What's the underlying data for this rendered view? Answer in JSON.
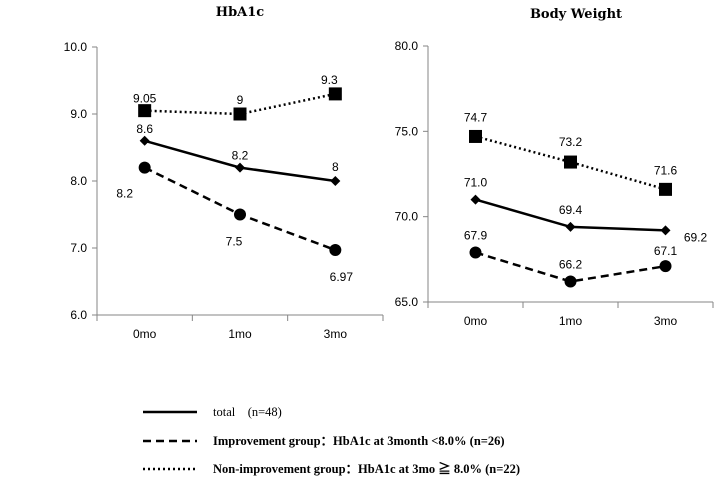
{
  "chart_data": [
    {
      "type": "line",
      "title": "HbA1c",
      "categories": [
        "0mo",
        "1mo",
        "3mo"
      ],
      "ylim": [
        6.0,
        10.0
      ],
      "yticks": [
        "6.0",
        "7.0",
        "8.0",
        "9.0",
        "10.0"
      ],
      "series": [
        {
          "key": "total",
          "values": [
            8.6,
            8.2,
            8.0
          ],
          "labels": [
            "8.6",
            "8.2",
            "8"
          ]
        },
        {
          "key": "improvement",
          "values": [
            8.2,
            7.5,
            6.97
          ],
          "labels": [
            "8.2",
            "7.5",
            "6.97"
          ]
        },
        {
          "key": "nonimprovement",
          "values": [
            9.05,
            9.0,
            9.3
          ],
          "labels": [
            "9.05",
            "9",
            "9.3"
          ]
        }
      ]
    },
    {
      "type": "line",
      "title": "Body Weight",
      "categories": [
        "0mo",
        "1mo",
        "3mo"
      ],
      "ylim": [
        65.0,
        80.0
      ],
      "yticks": [
        "65.0",
        "70.0",
        "75.0",
        "80.0"
      ],
      "series": [
        {
          "key": "total",
          "values": [
            71.0,
            69.4,
            69.2
          ],
          "labels": [
            "71.0",
            "69.4",
            "69.2"
          ]
        },
        {
          "key": "improvement",
          "values": [
            67.9,
            66.2,
            67.1
          ],
          "labels": [
            "67.9",
            "66.2",
            "67.1"
          ]
        },
        {
          "key": "nonimprovement",
          "values": [
            74.7,
            73.2,
            71.6
          ],
          "labels": [
            "74.7",
            "73.2",
            "71.6"
          ]
        }
      ]
    }
  ],
  "legend": [
    {
      "key": "total",
      "text": "total　(n=48)",
      "bold": false
    },
    {
      "key": "improvement",
      "text": "Improvement group：HbA1c at 3month <8.0%  (n=26)",
      "bold": true
    },
    {
      "key": "nonimprovement",
      "text": "Non-improvement group：HbA1c at 3mo ≧ 8.0%    (n=22)",
      "bold": true
    }
  ],
  "styles": {
    "total": {
      "dash": "",
      "marker": "diamond"
    },
    "improvement": {
      "dash": "8,5",
      "marker": "circle"
    },
    "nonimprovement": {
      "dash": "2,3",
      "marker": "square"
    }
  }
}
